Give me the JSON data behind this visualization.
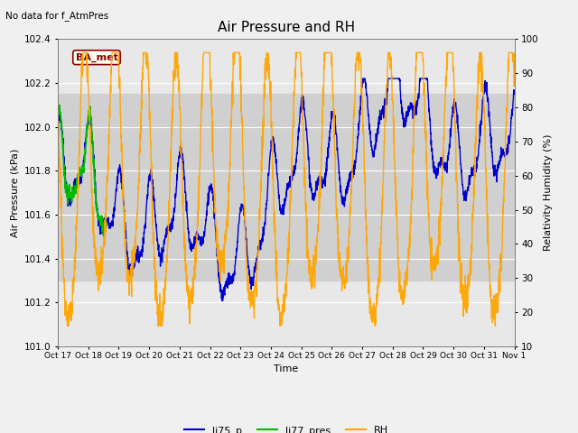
{
  "title": "Air Pressure and RH",
  "top_left_text": "No data for f_AtmPres",
  "box_label": "BA_met",
  "xlabel": "Time",
  "ylabel_left": "Air Pressure (kPa)",
  "ylabel_right": "Relativity Humidity (%)",
  "xlim": [
    0,
    15
  ],
  "ylim_left": [
    101.0,
    102.4
  ],
  "ylim_right": [
    10,
    100
  ],
  "yticks_left": [
    101.0,
    101.2,
    101.4,
    101.6,
    101.8,
    102.0,
    102.2,
    102.4
  ],
  "yticks_right": [
    10,
    20,
    30,
    40,
    50,
    60,
    70,
    80,
    90,
    100
  ],
  "xtick_labels": [
    "Oct 17",
    "Oct 18",
    "Oct 19",
    "Oct 20",
    "Oct 21",
    "Oct 22",
    "Oct 23",
    "Oct 24",
    "Oct 25",
    "Oct 26",
    "Oct 27",
    "Oct 28",
    "Oct 29",
    "Oct 30",
    "Oct 31",
    "Nov 1"
  ],
  "line_blue_color": "#0000cc",
  "line_green_color": "#00bb00",
  "line_orange_color": "#ffa500",
  "legend_labels": [
    "li75_p",
    "li77_pres",
    "RH"
  ],
  "fig_bg_color": "#f0f0f0",
  "plot_bg_color": "#e8e8e8",
  "shaded_band": [
    101.3,
    102.15
  ],
  "shaded_color": "#d0d0d0"
}
